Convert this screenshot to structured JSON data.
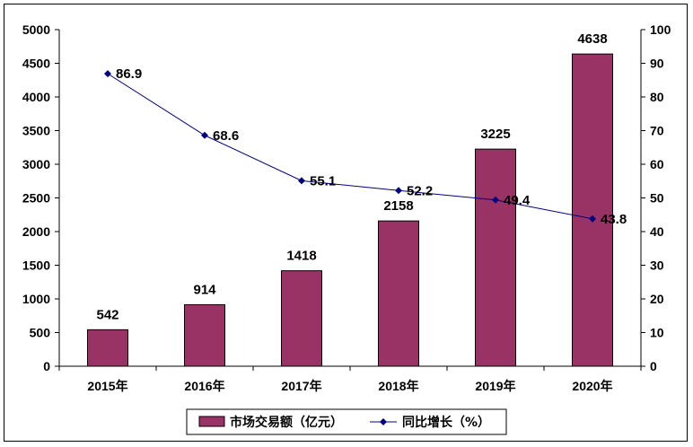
{
  "chart_data": {
    "type": "bar",
    "categories": [
      "2015年",
      "2016年",
      "2017年",
      "2018年",
      "2019年",
      "2020年"
    ],
    "series": [
      {
        "name": "市场交易额（亿元）",
        "type": "bar",
        "axis": "left",
        "values": [
          542,
          914,
          1418,
          2158,
          3225,
          4638
        ],
        "labels": [
          "542",
          "914",
          "1418",
          "2158",
          "3225",
          "4638"
        ]
      },
      {
        "name": "同比增长（%）",
        "type": "line",
        "axis": "right",
        "values": [
          86.9,
          68.6,
          55.1,
          52.2,
          49.4,
          43.8
        ],
        "labels": [
          "86.9",
          "68.6",
          "55.1",
          "52.2",
          "49.4",
          "43.8"
        ]
      }
    ],
    "y_left": {
      "min": 0,
      "max": 5000,
      "step": 500
    },
    "y_right": {
      "min": 0,
      "max": 100,
      "step": 10
    },
    "grid": false,
    "legend_position": "bottom",
    "colors": {
      "bar": "#993366",
      "line": "#000080",
      "axis": "#000000"
    }
  }
}
